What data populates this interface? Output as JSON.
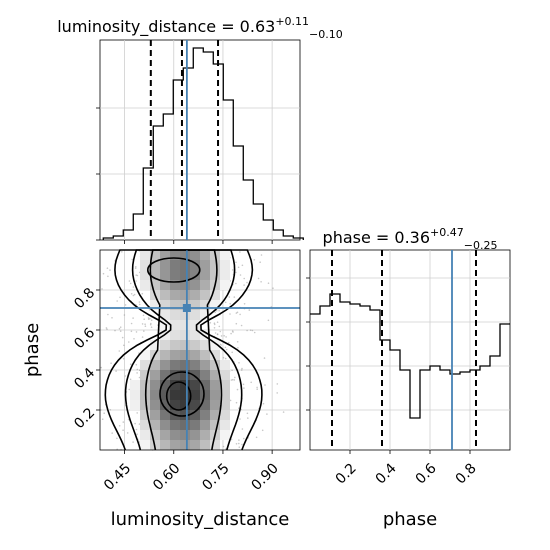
{
  "chart_data": [
    {
      "panel": "marginal-luminosity_distance",
      "type": "step-histogram",
      "title": {
        "text": "luminosity_distance = 0.63",
        "sup": "+0.11",
        "sub": "−0.10"
      },
      "xlim": [
        0.375,
        0.985
      ],
      "ylim": [
        0,
        1.0
      ],
      "bins": {
        "start": 0.385,
        "width": 0.0305,
        "heights": [
          0.01,
          0.02,
          0.05,
          0.13,
          0.36,
          0.57,
          0.63,
          0.8,
          0.86,
          0.96,
          0.94,
          0.88,
          0.7,
          0.47,
          0.3,
          0.18,
          0.1,
          0.05,
          0.02,
          0.01
        ]
      },
      "quantile_lines": [
        0.53,
        0.625,
        0.735
      ],
      "truth": 0.64,
      "xticks": [
        0.45,
        0.6,
        0.75,
        0.9
      ],
      "yticks": [
        0.0,
        0.33,
        0.66
      ]
    },
    {
      "panel": "joint-luminosity_distance-phase",
      "type": "2d-density",
      "xlabel": "luminosity_distance",
      "ylabel": "phase",
      "xlim": [
        0.375,
        0.985
      ],
      "ylim": [
        0.0,
        1.0
      ],
      "xticks": [
        0.45,
        0.6,
        0.75,
        0.9
      ],
      "xtick_labels": [
        "0.45",
        "0.60",
        "0.75",
        "0.90"
      ],
      "yticks": [
        0.2,
        0.4,
        0.6,
        0.8
      ],
      "ytick_labels": [
        "0.2",
        "0.4",
        "0.6",
        "0.8"
      ],
      "truth": {
        "x": 0.64,
        "y": 0.71
      }
    },
    {
      "panel": "marginal-phase",
      "type": "step-histogram",
      "title": {
        "text": "phase = 0.36",
        "sup": "+0.47",
        "sub": "−0.25"
      },
      "xlabel": "phase",
      "xlim": [
        0.0,
        1.0
      ],
      "ylim": [
        0,
        1.0
      ],
      "bins": {
        "start": 0.0,
        "width": 0.05,
        "heights": [
          0.68,
          0.72,
          0.78,
          0.74,
          0.73,
          0.72,
          0.7,
          0.55,
          0.5,
          0.4,
          0.16,
          0.4,
          0.42,
          0.4,
          0.38,
          0.39,
          0.4,
          0.42,
          0.47,
          0.63
        ]
      },
      "quantile_lines": [
        0.11,
        0.36,
        0.83
      ],
      "truth": 0.71,
      "xticks": [
        0.2,
        0.4,
        0.6,
        0.8
      ],
      "xtick_labels": [
        "0.2",
        "0.4",
        "0.6",
        "0.8"
      ],
      "yticks": [
        0.2,
        0.42,
        0.64,
        0.86
      ]
    }
  ],
  "colors": {
    "truth": "#4682b4",
    "hist": "#000000",
    "grid": "#cfcfcf"
  }
}
